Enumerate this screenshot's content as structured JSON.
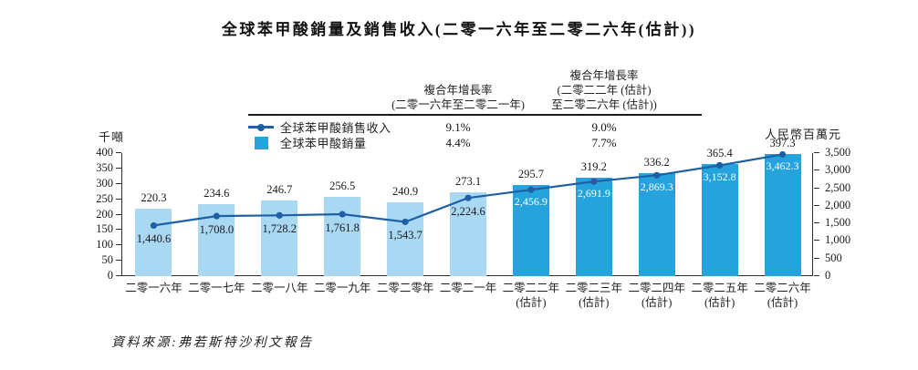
{
  "title": "全球苯甲酸銷量及銷售收入(二零一六年至二零二六年(估計))",
  "source_note": "資料來源:弗若斯特沙利文報告",
  "cagr_table": {
    "columns": [
      {
        "lines": [
          "複合年增長率",
          "(二零一六年至二零二一年)"
        ]
      },
      {
        "lines": [
          "複合年增長率",
          "(二零二二年 (估計)",
          "至二零二六年 (估計))"
        ]
      }
    ],
    "rows": [
      {
        "legend": "全球苯甲酸銷售收入",
        "marker": "line-dot",
        "values": [
          "9.1%",
          "9.0%"
        ]
      },
      {
        "legend": "全球苯甲酸銷量",
        "marker": "square",
        "values": [
          "4.4%",
          "7.7%"
        ]
      }
    ]
  },
  "chart_data": {
    "type": "bar",
    "subtype": "bar-line-combo",
    "categories": [
      {
        "label": "二零一六年",
        "sub": ""
      },
      {
        "label": "二零一七年",
        "sub": ""
      },
      {
        "label": "二零一八年",
        "sub": ""
      },
      {
        "label": "二零一九年",
        "sub": ""
      },
      {
        "label": "二零二零年",
        "sub": ""
      },
      {
        "label": "二零二一年",
        "sub": ""
      },
      {
        "label": "二零二二年",
        "sub": "(估計)"
      },
      {
        "label": "二零二三年",
        "sub": "(估計)"
      },
      {
        "label": "二零二四年",
        "sub": "(估計)"
      },
      {
        "label": "二零二五年",
        "sub": "(估計)"
      },
      {
        "label": "二零二六年",
        "sub": "(估計)"
      }
    ],
    "estimate_start_index": 6,
    "series": [
      {
        "name": "全球苯甲酸銷量",
        "type": "bar",
        "axis": "left",
        "values": [
          220.3,
          234.6,
          246.7,
          256.5,
          240.9,
          273.1,
          295.7,
          319.2,
          336.2,
          365.4,
          397.3
        ],
        "labels": [
          "220.3",
          "234.6",
          "246.7",
          "256.5",
          "240.9",
          "273.1",
          "295.7",
          "319.2",
          "336.2",
          "365.4",
          "397.3"
        ]
      },
      {
        "name": "全球苯甲酸銷售收入",
        "type": "line",
        "axis": "right",
        "values": [
          1440.6,
          1708.0,
          1728.2,
          1761.8,
          1543.7,
          2224.6,
          2456.9,
          2691.9,
          2869.3,
          3152.8,
          3462.3
        ],
        "labels": [
          "1,440.6",
          "1,708.0",
          "1,728.2",
          "1,761.8",
          "1,543.7",
          "2,224.6",
          "2,456.9",
          "2,691.9",
          "2,869.3",
          "3,152.8",
          "3,462.3"
        ]
      }
    ],
    "left_axis": {
      "label": "千噸",
      "min": 0,
      "max": 400,
      "ticks": [
        "0",
        "50",
        "100",
        "150",
        "200",
        "250",
        "300",
        "350",
        "400"
      ]
    },
    "right_axis": {
      "label": "人民幣百萬元",
      "min": 0,
      "max": 3500,
      "ticks": [
        "0",
        "500",
        "1,000",
        "1,500",
        "2,000",
        "2,500",
        "3,000",
        "3,500"
      ]
    },
    "colors": {
      "bar_actual": "#a9d8f3",
      "bar_estimate": "#25a3dd",
      "line": "#1e5fa6",
      "label_on_bar": "#ffffff"
    },
    "grid": false,
    "legend_position": "top-left-of-cagr-table"
  }
}
